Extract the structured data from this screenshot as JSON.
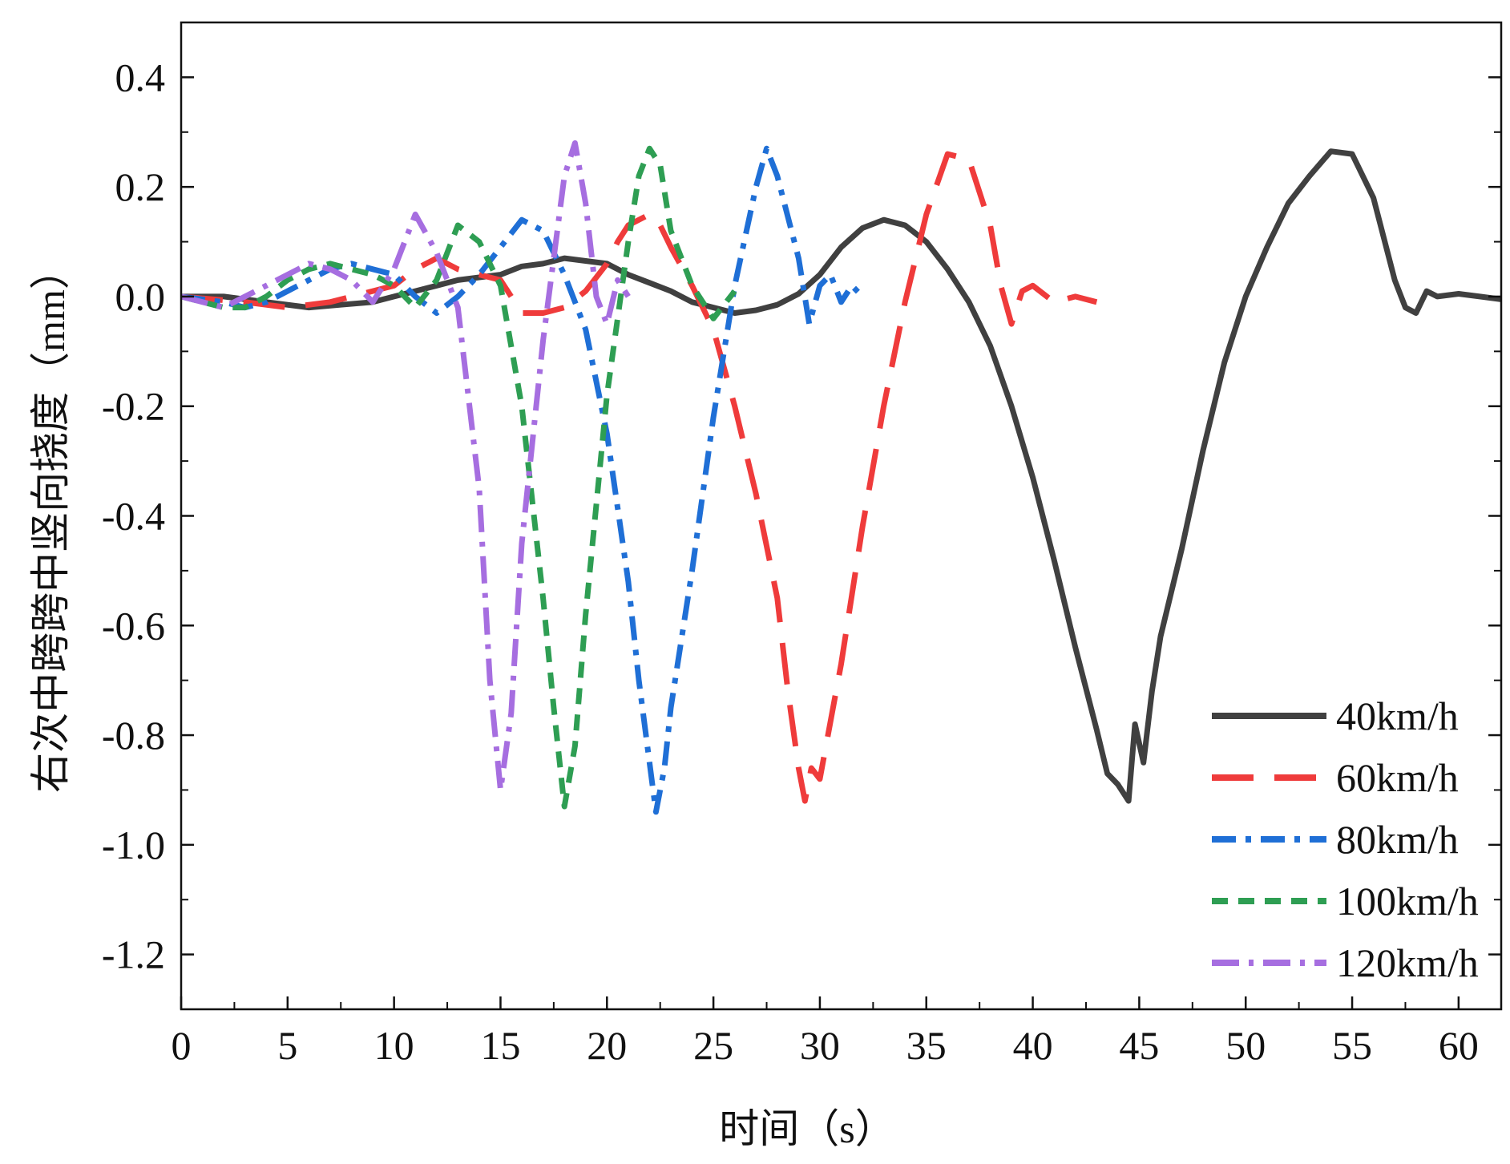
{
  "chart_data": {
    "type": "line",
    "title": "",
    "xlabel": "时间（s）",
    "ylabel": "右次中跨跨中竖向挠度（mm）",
    "xlim": [
      0,
      62
    ],
    "ylim": [
      -1.3,
      0.5
    ],
    "xticks": [
      0,
      5,
      10,
      15,
      20,
      25,
      30,
      35,
      40,
      45,
      50,
      55,
      60
    ],
    "yticks": [
      0.4,
      0.2,
      0.0,
      -0.2,
      -0.4,
      -0.6,
      -0.8,
      -1.0,
      -1.2
    ],
    "ytick_labels": [
      "0.4",
      "0.2",
      "0.0",
      "-0.2",
      "-0.4",
      "-0.6",
      "-0.8",
      "-1.0",
      "-1.2"
    ],
    "xtick_labels": [
      "0",
      "5",
      "10",
      "15",
      "20",
      "25",
      "30",
      "35",
      "40",
      "45",
      "50",
      "55",
      "60"
    ],
    "grid": false,
    "legend_position": "bottom-right",
    "series": [
      {
        "name": "40km/h",
        "color": "#404040",
        "dash": "solid",
        "points": [
          [
            0,
            0
          ],
          [
            2,
            0
          ],
          [
            4,
            -0.01
          ],
          [
            6,
            -0.02
          ],
          [
            7.5,
            -0.015
          ],
          [
            9,
            -0.01
          ],
          [
            10,
            0.0
          ],
          [
            11,
            0.01
          ],
          [
            12,
            0.02
          ],
          [
            13,
            0.03
          ],
          [
            14,
            0.035
          ],
          [
            15,
            0.04
          ],
          [
            16,
            0.055
          ],
          [
            17,
            0.06
          ],
          [
            18,
            0.07
          ],
          [
            19,
            0.065
          ],
          [
            20,
            0.06
          ],
          [
            21,
            0.04
          ],
          [
            22,
            0.025
          ],
          [
            23,
            0.01
          ],
          [
            24,
            -0.01
          ],
          [
            25,
            -0.02
          ],
          [
            26,
            -0.03
          ],
          [
            27,
            -0.025
          ],
          [
            28,
            -0.015
          ],
          [
            29,
            0.005
          ],
          [
            30,
            0.04
          ],
          [
            31,
            0.09
          ],
          [
            32,
            0.125
          ],
          [
            33,
            0.14
          ],
          [
            34,
            0.13
          ],
          [
            35,
            0.1
          ],
          [
            36,
            0.05
          ],
          [
            37,
            -0.01
          ],
          [
            38,
            -0.09
          ],
          [
            39,
            -0.2
          ],
          [
            40,
            -0.33
          ],
          [
            41,
            -0.48
          ],
          [
            42,
            -0.64
          ],
          [
            43,
            -0.79
          ],
          [
            43.5,
            -0.87
          ],
          [
            44,
            -0.89
          ],
          [
            44.5,
            -0.92
          ],
          [
            44.8,
            -0.78
          ],
          [
            45.2,
            -0.85
          ],
          [
            45.6,
            -0.72
          ],
          [
            46,
            -0.62
          ],
          [
            47,
            -0.46
          ],
          [
            48,
            -0.28
          ],
          [
            49,
            -0.12
          ],
          [
            50,
            0.0
          ],
          [
            51,
            0.09
          ],
          [
            52,
            0.17
          ],
          [
            53,
            0.22
          ],
          [
            54,
            0.265
          ],
          [
            55,
            0.26
          ],
          [
            56,
            0.18
          ],
          [
            57,
            0.03
          ],
          [
            57.5,
            -0.02
          ],
          [
            58,
            -0.03
          ],
          [
            58.5,
            0.01
          ],
          [
            59,
            0.0
          ],
          [
            60,
            0.005
          ],
          [
            61,
            0.0
          ],
          [
            62,
            -0.005
          ]
        ]
      },
      {
        "name": "60km/h",
        "color": "#ef3b3b",
        "dash": "longdash",
        "points": [
          [
            0,
            0
          ],
          [
            3,
            -0.01
          ],
          [
            5,
            -0.02
          ],
          [
            7,
            -0.01
          ],
          [
            9,
            0.01
          ],
          [
            10,
            0.02
          ],
          [
            11,
            0.05
          ],
          [
            12,
            0.07
          ],
          [
            13,
            0.05
          ],
          [
            14,
            0.04
          ],
          [
            15,
            0.03
          ],
          [
            15.5,
            0.0
          ],
          [
            16,
            -0.03
          ],
          [
            17,
            -0.03
          ],
          [
            18,
            -0.02
          ],
          [
            19,
            0.01
          ],
          [
            20,
            0.06
          ],
          [
            20.5,
            0.1
          ],
          [
            21,
            0.13
          ],
          [
            22,
            0.15
          ],
          [
            22.5,
            0.13
          ],
          [
            23,
            0.09
          ],
          [
            24,
            0.02
          ],
          [
            25,
            -0.06
          ],
          [
            26,
            -0.2
          ],
          [
            27,
            -0.36
          ],
          [
            28,
            -0.55
          ],
          [
            28.5,
            -0.72
          ],
          [
            29,
            -0.86
          ],
          [
            29.3,
            -0.92
          ],
          [
            29.6,
            -0.86
          ],
          [
            30,
            -0.88
          ],
          [
            31,
            -0.67
          ],
          [
            32,
            -0.42
          ],
          [
            33,
            -0.2
          ],
          [
            34,
            -0.01
          ],
          [
            35,
            0.15
          ],
          [
            36,
            0.26
          ],
          [
            37,
            0.25
          ],
          [
            38,
            0.13
          ],
          [
            38.5,
            0.02
          ],
          [
            39,
            -0.05
          ],
          [
            39.5,
            0.01
          ],
          [
            40,
            0.02
          ],
          [
            41,
            -0.01
          ],
          [
            42,
            0.0
          ],
          [
            43,
            -0.01
          ]
        ]
      },
      {
        "name": "80km/h",
        "color": "#1f6fd6",
        "dash": "dashdot",
        "points": [
          [
            0,
            0
          ],
          [
            2,
            -0.01
          ],
          [
            3,
            -0.02
          ],
          [
            4,
            -0.01
          ],
          [
            5,
            0.01
          ],
          [
            6,
            0.03
          ],
          [
            7,
            0.05
          ],
          [
            8,
            0.06
          ],
          [
            9,
            0.05
          ],
          [
            10,
            0.04
          ],
          [
            11,
            0.0
          ],
          [
            12,
            -0.03
          ],
          [
            13,
            0.0
          ],
          [
            14,
            0.04
          ],
          [
            15,
            0.09
          ],
          [
            16,
            0.14
          ],
          [
            17,
            0.12
          ],
          [
            18,
            0.04
          ],
          [
            19,
            -0.06
          ],
          [
            20,
            -0.25
          ],
          [
            21,
            -0.52
          ],
          [
            21.5,
            -0.7
          ],
          [
            22,
            -0.85
          ],
          [
            22.3,
            -0.94
          ],
          [
            22.7,
            -0.86
          ],
          [
            23,
            -0.75
          ],
          [
            24,
            -0.5
          ],
          [
            25,
            -0.22
          ],
          [
            26,
            0.02
          ],
          [
            27,
            0.2
          ],
          [
            27.5,
            0.27
          ],
          [
            28,
            0.22
          ],
          [
            29,
            0.07
          ],
          [
            29.5,
            -0.05
          ],
          [
            30,
            0.02
          ],
          [
            30.5,
            0.04
          ],
          [
            31,
            -0.01
          ],
          [
            31.5,
            0.02
          ],
          [
            32,
            0.0
          ]
        ]
      },
      {
        "name": "100km/h",
        "color": "#2e9e53",
        "dash": "shortdash",
        "points": [
          [
            0,
            0
          ],
          [
            2,
            -0.02
          ],
          [
            3,
            -0.02
          ],
          [
            4,
            0.0
          ],
          [
            5,
            0.03
          ],
          [
            6,
            0.05
          ],
          [
            7,
            0.06
          ],
          [
            8,
            0.05
          ],
          [
            9,
            0.04
          ],
          [
            10,
            0.02
          ],
          [
            11,
            -0.02
          ],
          [
            12,
            0.03
          ],
          [
            13,
            0.13
          ],
          [
            14,
            0.1
          ],
          [
            15,
            0.02
          ],
          [
            16,
            -0.2
          ],
          [
            17,
            -0.55
          ],
          [
            17.5,
            -0.75
          ],
          [
            18,
            -0.93
          ],
          [
            18.5,
            -0.82
          ],
          [
            19,
            -0.58
          ],
          [
            20,
            -0.18
          ],
          [
            21,
            0.1
          ],
          [
            21.5,
            0.22
          ],
          [
            22,
            0.27
          ],
          [
            22.5,
            0.24
          ],
          [
            23,
            0.12
          ],
          [
            24,
            0.02
          ],
          [
            25,
            -0.04
          ],
          [
            26,
            0.01
          ]
        ]
      },
      {
        "name": "120km/h",
        "color": "#a66ee0",
        "dash": "dashdot2",
        "points": [
          [
            0,
            0
          ],
          [
            2,
            -0.02
          ],
          [
            3,
            0.0
          ],
          [
            4,
            0.02
          ],
          [
            5,
            0.04
          ],
          [
            6,
            0.06
          ],
          [
            7,
            0.05
          ],
          [
            8,
            0.03
          ],
          [
            9,
            -0.01
          ],
          [
            10,
            0.05
          ],
          [
            11,
            0.15
          ],
          [
            12,
            0.08
          ],
          [
            13,
            -0.02
          ],
          [
            14,
            -0.35
          ],
          [
            14.5,
            -0.7
          ],
          [
            15,
            -0.9
          ],
          [
            15.5,
            -0.76
          ],
          [
            16,
            -0.45
          ],
          [
            17,
            -0.08
          ],
          [
            18,
            0.22
          ],
          [
            18.5,
            0.28
          ],
          [
            19,
            0.17
          ],
          [
            19.5,
            0.0
          ],
          [
            20,
            -0.05
          ],
          [
            20.5,
            0.03
          ],
          [
            21,
            0.0
          ]
        ]
      }
    ]
  }
}
